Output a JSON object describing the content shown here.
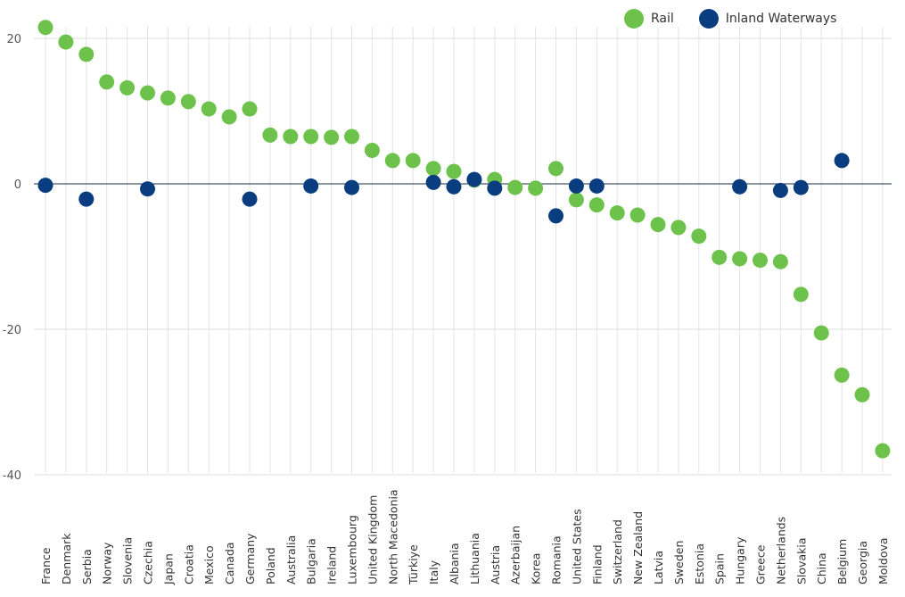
{
  "chart_data": {
    "type": "scatter",
    "title": "",
    "xlabel": "",
    "ylabel": "",
    "ylim": [
      -40,
      20
    ],
    "yticks": [
      20,
      0,
      -20,
      -40
    ],
    "grid": true,
    "legend_position": "top-right",
    "categories": [
      "France",
      "Denmark",
      "Serbia",
      "Norway",
      "Slovenia",
      "Czechia",
      "Japan",
      "Croatia",
      "Mexico",
      "Canada",
      "Germany",
      "Poland",
      "Australia",
      "Bulgaria",
      "Ireland",
      "Luxembourg",
      "United Kingdom",
      "North Macedonia",
      "Türkiye",
      "Italy",
      "Albania",
      "Lithuania",
      "Austria",
      "Azerbaijan",
      "Korea",
      "Romania",
      "United States",
      "Finland",
      "Switzerland",
      "New Zealand",
      "Latvia",
      "Sweden",
      "Estonia",
      "Spain",
      "Hungary",
      "Greece",
      "Netherlands",
      "Slovakia",
      "China",
      "Belgium",
      "Georgia",
      "Moldova"
    ],
    "series": [
      {
        "name": "Rail",
        "color": "#6cc24a",
        "values": [
          21.5,
          19.5,
          17.8,
          14,
          13.2,
          12.5,
          11.8,
          11.3,
          10.3,
          9.2,
          10.3,
          6.7,
          6.5,
          6.5,
          6.4,
          6.5,
          4.6,
          3.2,
          3.2,
          2.1,
          1.7,
          0.5,
          0.6,
          -0.5,
          -0.6,
          2.1,
          -2.2,
          -2.9,
          -4,
          -4.3,
          -5.6,
          -6,
          -7.2,
          -10.1,
          -10.3,
          -10.5,
          -10.7,
          -15.2,
          -20.5,
          -26.3,
          -29,
          -36.7
        ]
      },
      {
        "name": "Inland Waterways",
        "color": "#0a3d7f",
        "values": [
          -0.2,
          null,
          -2.1,
          null,
          null,
          -0.7,
          null,
          null,
          null,
          null,
          -2.1,
          null,
          null,
          -0.3,
          null,
          -0.5,
          null,
          null,
          null,
          0.2,
          -0.4,
          0.6,
          -0.6,
          null,
          null,
          -4.4,
          -0.3,
          -0.3,
          null,
          null,
          null,
          null,
          null,
          null,
          -0.4,
          null,
          -0.9,
          -0.5,
          null,
          3.2,
          null,
          null
        ]
      }
    ]
  }
}
